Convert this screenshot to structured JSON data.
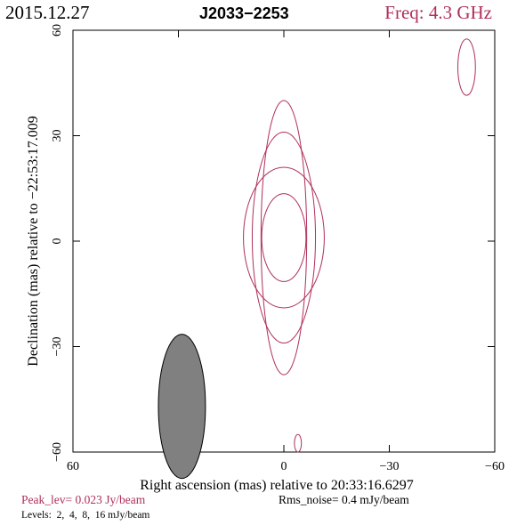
{
  "header": {
    "date": "2015.12.27",
    "source": "J2033−2253",
    "freq": "Freq: 4.3 GHz"
  },
  "footer": {
    "peak": "Peak_lev=  0.023 Jy/beam",
    "rms": "Rms_noise=  0.4 mJy/beam",
    "levels": "Levels:  2,  4,  8,  16 mJy/beam"
  },
  "colors": {
    "contour": "#b03058",
    "beam_fill": "#808080",
    "axis": "#000000"
  },
  "chart_data": {
    "type": "contour",
    "xlabel": "Right ascension (mas) relative to 20:33:16.6297",
    "ylabel": "Declination (mas) relative to −22:53:17.009",
    "xlim": [
      60,
      -60
    ],
    "ylim": [
      -60,
      60
    ],
    "xticks": [
      60,
      30,
      0,
      -30,
      -60
    ],
    "yticks": [
      -60,
      -30,
      0,
      30,
      60
    ],
    "xtick_labels": [
      "60",
      "30",
      "0",
      "−30",
      "−60"
    ],
    "ytick_labels": [
      "−60",
      "−30",
      "0",
      "30",
      "60"
    ],
    "contour_levels_mJy": [
      2,
      4,
      8,
      16
    ],
    "components": [
      {
        "x": 0,
        "y": 1,
        "rings": [
          [
            6.5,
            39
          ],
          [
            9,
            30
          ],
          [
            11.5,
            20
          ],
          [
            6.3,
            12.5
          ]
        ]
      },
      {
        "x": -52,
        "y": 49.5,
        "rings": [
          [
            2.5,
            8
          ]
        ]
      },
      {
        "x": -4,
        "y": -57.5,
        "rings": [
          [
            1,
            2.5
          ]
        ]
      }
    ],
    "beam": {
      "x": 29,
      "y": -47,
      "major": 20.5,
      "minor": 6.7,
      "pa_deg": 0
    }
  }
}
